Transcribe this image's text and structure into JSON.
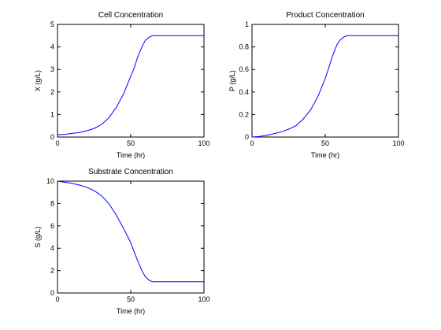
{
  "chart_data": [
    {
      "type": "line",
      "title": "Cell Concentration",
      "xlabel": "Time (hr)",
      "ylabel": "X (g/L)",
      "xlim": [
        0,
        100
      ],
      "ylim": [
        0,
        5
      ],
      "xticks": [
        0,
        50,
        100
      ],
      "yticks": [
        0,
        1,
        2,
        3,
        4,
        5
      ],
      "color": "#0000ff",
      "series": [
        {
          "x": [
            0,
            5,
            10,
            15,
            20,
            25,
            30,
            35,
            40,
            45,
            50,
            52,
            55,
            58,
            60,
            63,
            65,
            70,
            80,
            90,
            100
          ],
          "y": [
            0.1,
            0.12,
            0.16,
            0.2,
            0.28,
            0.38,
            0.55,
            0.85,
            1.3,
            1.9,
            2.7,
            3.0,
            3.6,
            4.05,
            4.3,
            4.45,
            4.5,
            4.5,
            4.5,
            4.5,
            4.5
          ]
        }
      ]
    },
    {
      "type": "line",
      "title": "Product Concentration",
      "xlabel": "Time (hr)",
      "ylabel": "P (g/L)",
      "xlim": [
        0,
        100
      ],
      "ylim": [
        0,
        1
      ],
      "xticks": [
        0,
        50,
        100
      ],
      "yticks": [
        0,
        0.2,
        0.4,
        0.6,
        0.8,
        1
      ],
      "color": "#0000ff",
      "series": [
        {
          "x": [
            0,
            5,
            10,
            15,
            20,
            25,
            30,
            35,
            40,
            45,
            50,
            52,
            55,
            58,
            60,
            63,
            65,
            70,
            80,
            90,
            100
          ],
          "y": [
            0,
            0.005,
            0.015,
            0.03,
            0.045,
            0.07,
            0.1,
            0.16,
            0.24,
            0.36,
            0.52,
            0.6,
            0.72,
            0.82,
            0.86,
            0.89,
            0.9,
            0.9,
            0.9,
            0.9,
            0.9
          ]
        }
      ]
    },
    {
      "type": "line",
      "title": "Substrate Concentration",
      "xlabel": "Time (hr)",
      "ylabel": "S (g/L)",
      "xlim": [
        0,
        100
      ],
      "ylim": [
        0,
        10
      ],
      "xticks": [
        0,
        50,
        100
      ],
      "yticks": [
        0,
        2,
        4,
        6,
        8,
        10
      ],
      "color": "#0000ff",
      "series": [
        {
          "x": [
            0,
            5,
            10,
            15,
            20,
            25,
            30,
            35,
            40,
            45,
            50,
            52,
            55,
            58,
            60,
            63,
            65,
            70,
            80,
            90,
            100
          ],
          "y": [
            10,
            9.9,
            9.8,
            9.65,
            9.45,
            9.15,
            8.7,
            8.0,
            7.0,
            5.8,
            4.5,
            3.8,
            2.8,
            1.9,
            1.45,
            1.1,
            1.0,
            1.0,
            1.0,
            1.0,
            1.0
          ]
        }
      ]
    }
  ]
}
